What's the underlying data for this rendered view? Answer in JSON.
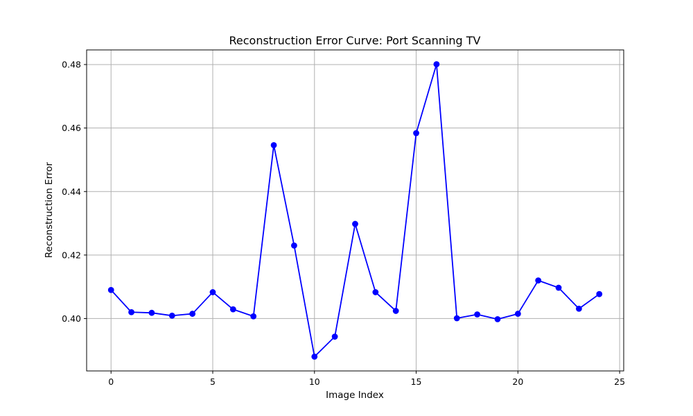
{
  "chart_data": {
    "type": "line",
    "title": "Reconstruction Error Curve: Port Scanning TV",
    "xlabel": "Image Index",
    "ylabel": "Reconstruction Error",
    "x": [
      0,
      1,
      2,
      3,
      4,
      5,
      6,
      7,
      8,
      9,
      10,
      11,
      12,
      13,
      14,
      15,
      16,
      17,
      18,
      19,
      20,
      21,
      22,
      23,
      24
    ],
    "series": [
      {
        "name": "",
        "values": [
          0.409,
          0.402,
          0.4018,
          0.4009,
          0.4015,
          0.4083,
          0.4029,
          0.4007,
          0.4546,
          0.423,
          0.388,
          0.3943,
          0.4298,
          0.4083,
          0.4024,
          0.4584,
          0.4801,
          0.4001,
          0.4013,
          0.3998,
          0.4015,
          0.412,
          0.4097,
          0.4031,
          0.4077
        ],
        "color": "#0000ff",
        "marker": "circle"
      }
    ],
    "xlim": [
      -1.2,
      25.2
    ],
    "ylim": [
      0.3835,
      0.4846
    ],
    "xticks": [
      0,
      5,
      10,
      15,
      20,
      25
    ],
    "xtick_labels": [
      "0",
      "5",
      "10",
      "15",
      "20",
      "25"
    ],
    "yticks": [
      0.4,
      0.42,
      0.44,
      0.46,
      0.48
    ],
    "ytick_labels": [
      "0.40",
      "0.42",
      "0.44",
      "0.46",
      "0.48"
    ],
    "grid": true,
    "legend": "none"
  }
}
